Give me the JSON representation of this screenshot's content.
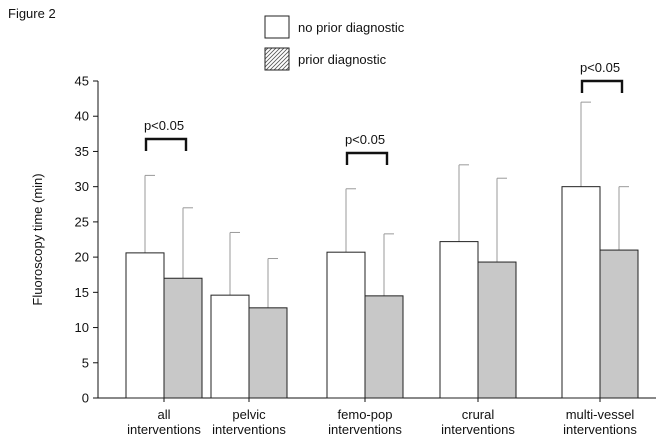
{
  "figure_label": "Figure 2",
  "chart_data": {
    "type": "bar",
    "title": "",
    "ylabel": "Fluoroscopy time (min)",
    "xlabel": "",
    "ylim": [
      0,
      45
    ],
    "yticks": [
      0,
      5,
      10,
      15,
      20,
      25,
      30,
      35,
      40,
      45
    ],
    "categories": [
      [
        "all",
        "interventions"
      ],
      [
        "pelvic",
        "interventions"
      ],
      [
        "femo-pop",
        "interventions"
      ],
      [
        "crural",
        "interventions"
      ],
      [
        "multi-vessel",
        "interventions"
      ]
    ],
    "series": [
      {
        "name": "no prior diagnostic",
        "fill": "#ffffff",
        "pattern": "none",
        "values": [
          20.6,
          14.6,
          20.7,
          22.2,
          30.0
        ],
        "error_upper": [
          31.6,
          23.5,
          29.7,
          33.1,
          42.0
        ]
      },
      {
        "name": "prior diagnostic",
        "fill": "#c8c8c8",
        "pattern": "hatch",
        "values": [
          17.0,
          12.8,
          14.5,
          19.3,
          21.0
        ],
        "error_upper": [
          27.0,
          19.8,
          23.3,
          31.2,
          30.0
        ]
      }
    ],
    "significance": [
      {
        "category_index": 0,
        "label": "p<0.05"
      },
      {
        "category_index": 2,
        "label": "p<0.05"
      },
      {
        "category_index": 4,
        "label": "p<0.05"
      }
    ],
    "grid": false,
    "legend_position": "top"
  }
}
